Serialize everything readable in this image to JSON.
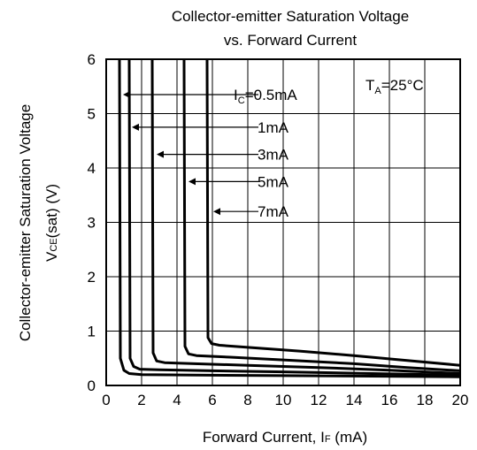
{
  "chart_data": {
    "type": "line",
    "title": [
      "Collector-emitter Saturation Voltage",
      "vs. Forward Current"
    ],
    "xlabel": {
      "main": "Forward Current, I",
      "sub": "F",
      "unit": " (mA)"
    },
    "ylabel": {
      "line1": "Collector-emitter Saturation Voltage",
      "main": "V",
      "sub": "CE",
      "unit": "(sat) (V)"
    },
    "xlim": [
      0,
      20
    ],
    "ylim": [
      0,
      6
    ],
    "xticks": [
      "0",
      "2",
      "4",
      "6",
      "8",
      "10",
      "12",
      "14",
      "16",
      "18",
      "20"
    ],
    "yticks": [
      "0",
      "1",
      "2",
      "3",
      "4",
      "5",
      "6"
    ],
    "grid": true,
    "condition": {
      "main": "T",
      "sub": "A",
      "rest": "=25°C"
    },
    "series": [
      {
        "name": "0.5mA",
        "label_prefix": "I",
        "label_sub": "C",
        "label_text": "=0.5mA",
        "label_y": 5.35,
        "arrow_x": 0.8,
        "x": [
          0.75,
          0.8,
          1.0,
          1.3,
          2,
          5,
          10,
          15,
          20
        ],
        "y": [
          6,
          0.5,
          0.28,
          0.22,
          0.2,
          0.19,
          0.18,
          0.17,
          0.16
        ]
      },
      {
        "name": "1mA",
        "label_prefix": "",
        "label_sub": "",
        "label_text": "1mA",
        "label_y": 4.75,
        "arrow_x": 1.3,
        "x": [
          1.3,
          1.35,
          1.55,
          1.9,
          3,
          6,
          10,
          15,
          20
        ],
        "y": [
          6,
          0.5,
          0.35,
          0.3,
          0.29,
          0.27,
          0.25,
          0.22,
          0.19
        ]
      },
      {
        "name": "3mA",
        "label_prefix": "",
        "label_sub": "",
        "label_text": "3mA",
        "label_y": 4.25,
        "arrow_x": 2.7,
        "x": [
          2.6,
          2.65,
          2.85,
          3.3,
          5,
          8,
          12,
          16,
          20
        ],
        "y": [
          6,
          0.6,
          0.45,
          0.42,
          0.4,
          0.37,
          0.33,
          0.28,
          0.22
        ]
      },
      {
        "name": "5mA",
        "label_prefix": "",
        "label_sub": "",
        "label_text": "5mA",
        "label_y": 3.75,
        "arrow_x": 4.5,
        "x": [
          4.4,
          4.45,
          4.65,
          5.1,
          7,
          10,
          14,
          17,
          20
        ],
        "y": [
          6,
          0.72,
          0.58,
          0.55,
          0.52,
          0.47,
          0.4,
          0.33,
          0.27
        ]
      },
      {
        "name": "7mA",
        "label_prefix": "",
        "label_sub": "",
        "label_text": "7mA",
        "label_y": 3.2,
        "arrow_x": 5.9,
        "x": [
          5.7,
          5.75,
          5.95,
          6.4,
          8,
          11,
          14,
          17,
          20
        ],
        "y": [
          6,
          0.88,
          0.77,
          0.74,
          0.7,
          0.63,
          0.55,
          0.46,
          0.37
        ]
      }
    ]
  }
}
